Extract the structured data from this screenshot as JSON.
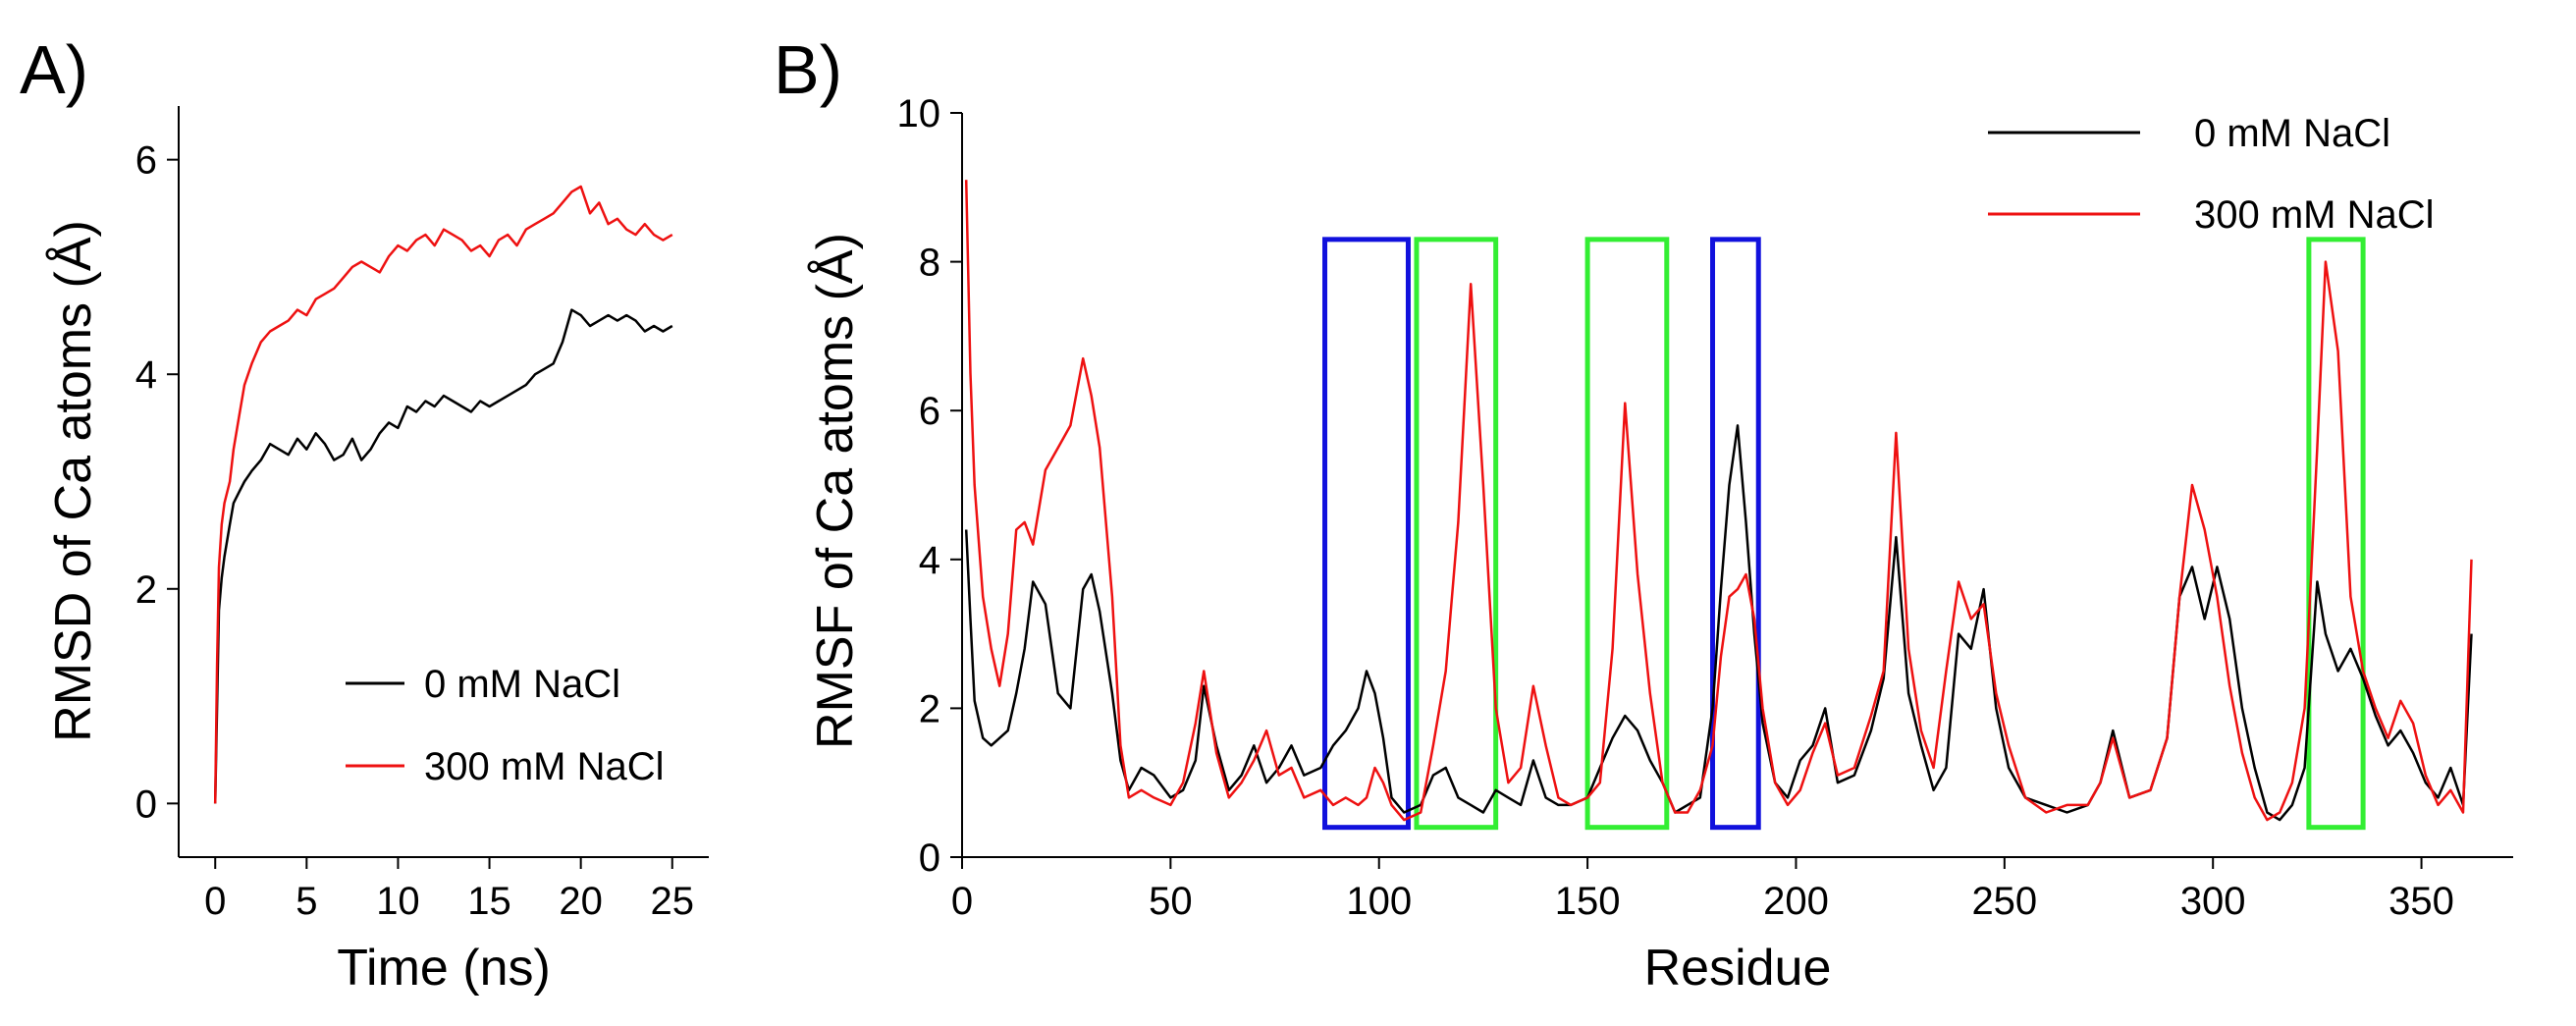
{
  "chart_data": [
    {
      "type": "line",
      "panel_label": "A)",
      "xlabel": "Time (ns)",
      "ylabel": "RMSD of Ca atoms (Å)",
      "xlim": [
        -2,
        27
      ],
      "ylim": [
        -0.5,
        6.5
      ],
      "xticks": [
        0,
        5,
        10,
        15,
        20,
        25
      ],
      "yticks": [
        0,
        2,
        4,
        6
      ],
      "grid": false,
      "legend": "bottom-right",
      "series": [
        {
          "name": "0 mM NaCl",
          "color": "#000000",
          "x": [
            0,
            0.1,
            0.2,
            0.35,
            0.5,
            0.8,
            1,
            1.3,
            1.6,
            2,
            2.5,
            3,
            3.5,
            4,
            4.5,
            5,
            5.5,
            6,
            6.5,
            7,
            7.5,
            8,
            8.5,
            9,
            9.5,
            10,
            10.5,
            11,
            11.5,
            12,
            12.5,
            13,
            13.5,
            14,
            14.5,
            15,
            15.5,
            16,
            16.5,
            17,
            17.5,
            18,
            18.5,
            19,
            19.5,
            20,
            20.5,
            21,
            21.5,
            22,
            22.5,
            23,
            23.5,
            24,
            24.5,
            25
          ],
          "values": [
            0,
            0.9,
            1.8,
            2.1,
            2.3,
            2.6,
            2.8,
            2.9,
            3.0,
            3.1,
            3.2,
            3.35,
            3.3,
            3.25,
            3.4,
            3.3,
            3.45,
            3.35,
            3.2,
            3.25,
            3.4,
            3.2,
            3.3,
            3.45,
            3.55,
            3.5,
            3.7,
            3.65,
            3.75,
            3.7,
            3.8,
            3.75,
            3.7,
            3.65,
            3.75,
            3.7,
            3.75,
            3.8,
            3.85,
            3.9,
            4.0,
            4.05,
            4.1,
            4.3,
            4.6,
            4.55,
            4.45,
            4.5,
            4.55,
            4.5,
            4.55,
            4.5,
            4.4,
            4.45,
            4.4,
            4.45
          ]
        },
        {
          "name": "300 mM NaCl",
          "color": "#ee1111",
          "x": [
            0,
            0.1,
            0.2,
            0.35,
            0.5,
            0.8,
            1,
            1.3,
            1.6,
            2,
            2.5,
            3,
            3.5,
            4,
            4.5,
            5,
            5.5,
            6,
            6.5,
            7,
            7.5,
            8,
            8.5,
            9,
            9.5,
            10,
            10.5,
            11,
            11.5,
            12,
            12.5,
            13,
            13.5,
            14,
            14.5,
            15,
            15.5,
            16,
            16.5,
            17,
            17.5,
            18,
            18.5,
            19,
            19.5,
            20,
            20.5,
            21,
            21.5,
            22,
            22.5,
            23,
            23.5,
            24,
            24.5,
            25
          ],
          "values": [
            0,
            1.3,
            2.2,
            2.6,
            2.8,
            3.0,
            3.3,
            3.6,
            3.9,
            4.1,
            4.3,
            4.4,
            4.45,
            4.5,
            4.6,
            4.55,
            4.7,
            4.75,
            4.8,
            4.9,
            5.0,
            5.05,
            5.0,
            4.95,
            5.1,
            5.2,
            5.15,
            5.25,
            5.3,
            5.2,
            5.35,
            5.3,
            5.25,
            5.15,
            5.2,
            5.1,
            5.25,
            5.3,
            5.2,
            5.35,
            5.4,
            5.45,
            5.5,
            5.6,
            5.7,
            5.75,
            5.5,
            5.6,
            5.4,
            5.45,
            5.35,
            5.3,
            5.4,
            5.3,
            5.25,
            5.3
          ]
        }
      ]
    },
    {
      "type": "line",
      "panel_label": "B)",
      "xlabel": "Residue",
      "ylabel": "RMSF of Ca atoms (Å)",
      "xlim": [
        0,
        372
      ],
      "ylim": [
        0,
        10
      ],
      "xticks": [
        0,
        50,
        100,
        150,
        200,
        250,
        300,
        350
      ],
      "yticks": [
        0,
        2,
        4,
        6,
        8,
        10
      ],
      "grid": false,
      "legend": "top-right",
      "highlight_boxes": [
        {
          "color": "#1111dd",
          "x0": 87,
          "x1": 107,
          "y0": 0.4,
          "y1": 8.3
        },
        {
          "color": "#33ee33",
          "x0": 109,
          "x1": 128,
          "y0": 0.4,
          "y1": 8.3
        },
        {
          "color": "#33ee33",
          "x0": 150,
          "x1": 169,
          "y0": 0.4,
          "y1": 8.3
        },
        {
          "color": "#1111dd",
          "x0": 180,
          "x1": 191,
          "y0": 0.4,
          "y1": 8.3
        },
        {
          "color": "#33ee33",
          "x0": 323,
          "x1": 336,
          "y0": 0.4,
          "y1": 8.3
        }
      ],
      "series": [
        {
          "name": "0 mM NaCl",
          "color": "#000000",
          "x": [
            1,
            2,
            3,
            5,
            7,
            9,
            11,
            13,
            15,
            17,
            20,
            23,
            26,
            29,
            31,
            33,
            36,
            38,
            40,
            43,
            46,
            50,
            53,
            56,
            58,
            61,
            64,
            67,
            70,
            73,
            76,
            79,
            82,
            86,
            89,
            92,
            95,
            97,
            99,
            101,
            103,
            106,
            110,
            113,
            116,
            119,
            122,
            125,
            128,
            131,
            134,
            137,
            140,
            143,
            146,
            150,
            153,
            156,
            159,
            162,
            165,
            168,
            171,
            174,
            177,
            180,
            182,
            184,
            186,
            188,
            190,
            192,
            195,
            198,
            201,
            204,
            207,
            210,
            214,
            218,
            221,
            224,
            227,
            230,
            233,
            236,
            239,
            242,
            245,
            248,
            251,
            255,
            260,
            265,
            270,
            273,
            276,
            280,
            285,
            289,
            292,
            295,
            298,
            301,
            304,
            307,
            310,
            313,
            316,
            319,
            322,
            325,
            327,
            330,
            333,
            336,
            339,
            342,
            345,
            348,
            351,
            354,
            357,
            360,
            362
          ],
          "values": [
            4.4,
            3.2,
            2.1,
            1.6,
            1.5,
            1.6,
            1.7,
            2.2,
            2.8,
            3.7,
            3.4,
            2.2,
            2.0,
            3.6,
            3.8,
            3.3,
            2.2,
            1.3,
            0.9,
            1.2,
            1.1,
            0.8,
            0.9,
            1.3,
            2.3,
            1.5,
            0.9,
            1.1,
            1.5,
            1.0,
            1.2,
            1.5,
            1.1,
            1.2,
            1.5,
            1.7,
            2.0,
            2.5,
            2.2,
            1.6,
            0.8,
            0.6,
            0.7,
            1.1,
            1.2,
            0.8,
            0.7,
            0.6,
            0.9,
            0.8,
            0.7,
            1.3,
            0.8,
            0.7,
            0.7,
            0.8,
            1.2,
            1.6,
            1.9,
            1.7,
            1.3,
            1.0,
            0.6,
            0.7,
            0.8,
            2.0,
            3.6,
            5.0,
            5.8,
            4.5,
            3.0,
            1.8,
            1.0,
            0.8,
            1.3,
            1.5,
            2.0,
            1.0,
            1.1,
            1.7,
            2.4,
            4.3,
            2.2,
            1.5,
            0.9,
            1.2,
            3.0,
            2.8,
            3.6,
            2.0,
            1.2,
            0.8,
            0.7,
            0.6,
            0.7,
            1.0,
            1.7,
            0.8,
            0.9,
            1.6,
            3.5,
            3.9,
            3.2,
            3.9,
            3.2,
            2.0,
            1.2,
            0.6,
            0.5,
            0.7,
            1.2,
            3.7,
            3.0,
            2.5,
            2.8,
            2.4,
            1.9,
            1.5,
            1.7,
            1.4,
            1.0,
            0.8,
            1.2,
            0.7,
            3.0
          ]
        },
        {
          "name": "300 mM NaCl",
          "color": "#ee1111",
          "x": [
            1,
            2,
            3,
            5,
            7,
            9,
            11,
            13,
            15,
            17,
            20,
            23,
            26,
            29,
            31,
            33,
            36,
            38,
            40,
            43,
            46,
            50,
            53,
            56,
            58,
            61,
            64,
            67,
            70,
            73,
            76,
            79,
            82,
            86,
            89,
            92,
            95,
            97,
            99,
            101,
            103,
            106,
            110,
            113,
            116,
            119,
            122,
            125,
            128,
            131,
            134,
            137,
            140,
            143,
            146,
            150,
            153,
            156,
            159,
            162,
            165,
            168,
            171,
            174,
            177,
            180,
            182,
            184,
            186,
            188,
            190,
            192,
            195,
            198,
            201,
            204,
            207,
            210,
            214,
            218,
            221,
            224,
            227,
            230,
            233,
            236,
            239,
            242,
            245,
            248,
            251,
            255,
            260,
            265,
            270,
            273,
            276,
            280,
            285,
            289,
            292,
            295,
            298,
            301,
            304,
            307,
            310,
            313,
            316,
            319,
            322,
            325,
            327,
            330,
            333,
            336,
            339,
            342,
            345,
            348,
            351,
            354,
            357,
            360,
            362
          ],
          "values": [
            9.1,
            6.5,
            5.0,
            3.5,
            2.8,
            2.3,
            3.0,
            4.4,
            4.5,
            4.2,
            5.2,
            5.5,
            5.8,
            6.7,
            6.2,
            5.5,
            3.5,
            1.5,
            0.8,
            0.9,
            0.8,
            0.7,
            1.0,
            1.8,
            2.5,
            1.4,
            0.8,
            1.0,
            1.3,
            1.7,
            1.1,
            1.2,
            0.8,
            0.9,
            0.7,
            0.8,
            0.7,
            0.8,
            1.2,
            1.0,
            0.7,
            0.5,
            0.6,
            1.5,
            2.5,
            4.5,
            7.7,
            5.0,
            2.0,
            1.0,
            1.2,
            2.3,
            1.5,
            0.8,
            0.7,
            0.8,
            1.0,
            2.8,
            6.1,
            3.8,
            2.2,
            1.0,
            0.6,
            0.6,
            0.9,
            1.5,
            2.7,
            3.5,
            3.6,
            3.8,
            3.2,
            2.0,
            1.0,
            0.7,
            0.9,
            1.4,
            1.8,
            1.1,
            1.2,
            1.9,
            2.5,
            5.7,
            2.8,
            1.7,
            1.2,
            2.5,
            3.7,
            3.2,
            3.4,
            2.2,
            1.5,
            0.8,
            0.6,
            0.7,
            0.7,
            1.0,
            1.6,
            0.8,
            0.9,
            1.6,
            3.5,
            5.0,
            4.4,
            3.5,
            2.3,
            1.4,
            0.8,
            0.5,
            0.6,
            1.0,
            2.0,
            5.5,
            8.0,
            6.8,
            3.5,
            2.5,
            2.0,
            1.6,
            2.1,
            1.8,
            1.1,
            0.7,
            0.9,
            0.6,
            4.0
          ]
        }
      ]
    }
  ]
}
